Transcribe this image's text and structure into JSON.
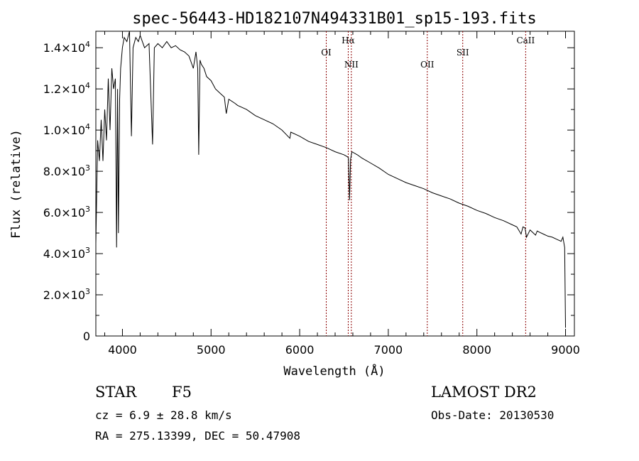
{
  "chart_data": {
    "type": "line",
    "title": "spec-56443-HD182107N494331B01_sp15-193.fits",
    "xlabel": "Wavelength (Å)",
    "ylabel": "Flux (relative)",
    "xlim": [
      3700,
      9100
    ],
    "ylim": [
      0,
      14800
    ],
    "x_ticks": [
      4000,
      5000,
      6000,
      7000,
      8000,
      9000
    ],
    "y_ticks": [
      {
        "value": 0,
        "mantissa": "0",
        "exponent": ""
      },
      {
        "value": 2000,
        "mantissa": "2.0×10",
        "exponent": "3"
      },
      {
        "value": 4000,
        "mantissa": "4.0×10",
        "exponent": "3"
      },
      {
        "value": 6000,
        "mantissa": "6.0×10",
        "exponent": "3"
      },
      {
        "value": 8000,
        "mantissa": "8.0×10",
        "exponent": "3"
      },
      {
        "value": 10000,
        "mantissa": "1.0×10",
        "exponent": "4"
      },
      {
        "value": 12000,
        "mantissa": "1.2×10",
        "exponent": "4"
      },
      {
        "value": 14000,
        "mantissa": "1.4×10",
        "exponent": "4"
      }
    ],
    "grid": false,
    "line_color": "#000000",
    "marker_color": "#8b0000",
    "series": [
      {
        "x": [
          3700,
          3720,
          3740,
          3760,
          3780,
          3800,
          3820,
          3840,
          3860,
          3880,
          3900,
          3920,
          3934,
          3945,
          3955,
          3968,
          3980,
          4000,
          4020,
          4050,
          4080,
          4101,
          4120,
          4150,
          4180,
          4200,
          4250,
          4300,
          4340,
          4360,
          4400,
          4450,
          4500,
          4550,
          4600,
          4650,
          4700,
          4750,
          4800,
          4830,
          4850,
          4861,
          4875,
          4890,
          4920,
          4950,
          5000,
          5050,
          5100,
          5150,
          5172,
          5200,
          5270,
          5300,
          5400,
          5500,
          5600,
          5700,
          5800,
          5890,
          5900,
          6000,
          6100,
          6200,
          6300,
          6400,
          6500,
          6540,
          6550,
          6563,
          6575,
          6590,
          6650,
          6700,
          6800,
          6900,
          7000,
          7100,
          7200,
          7300,
          7400,
          7500,
          7600,
          7700,
          7800,
          7900,
          8000,
          8100,
          8200,
          8300,
          8400,
          8450,
          8498,
          8520,
          8542,
          8560,
          8600,
          8662,
          8680,
          8700,
          8750,
          8800,
          8850,
          8900,
          8950,
          8970,
          8990,
          9000
        ],
        "y": [
          4500,
          9500,
          8500,
          10500,
          8500,
          11000,
          9500,
          12500,
          10000,
          13000,
          12000,
          12500,
          4300,
          12000,
          5000,
          11500,
          13000,
          14000,
          14500,
          14300,
          14800,
          9700,
          14000,
          14500,
          14300,
          14600,
          14000,
          14200,
          9300,
          14000,
          14200,
          14000,
          14300,
          14000,
          14100,
          13900,
          13800,
          13600,
          13000,
          13800,
          13000,
          8800,
          13400,
          13200,
          13000,
          12600,
          12400,
          12000,
          11800,
          11600,
          10800,
          11500,
          11300,
          11200,
          11000,
          10700,
          10500,
          10300,
          10000,
          9600,
          9900,
          9700,
          9450,
          9300,
          9150,
          8950,
          8800,
          8700,
          8650,
          6600,
          8600,
          8950,
          8800,
          8650,
          8400,
          8150,
          7850,
          7650,
          7450,
          7300,
          7150,
          6950,
          6800,
          6650,
          6450,
          6300,
          6100,
          5950,
          5750,
          5600,
          5400,
          5300,
          4950,
          5300,
          5250,
          4800,
          5150,
          4900,
          5100,
          5050,
          4950,
          4850,
          4800,
          4700,
          4600,
          4800,
          4300,
          400
        ]
      }
    ],
    "line_markers": [
      {
        "label": "OI",
        "x": 6300,
        "label_row": "low"
      },
      {
        "label": "Hα",
        "x": 6548,
        "label_row": "high"
      },
      {
        "label": "NII",
        "x": 6583,
        "label_row": "mid"
      },
      {
        "label": "OII",
        "x": 7440,
        "label_row": "mid"
      },
      {
        "label": "SII",
        "x": 7840,
        "label_row": "low"
      },
      {
        "label": "CaII",
        "x": 8550,
        "label_row": "high"
      }
    ]
  },
  "info": {
    "object_class": "STAR",
    "subclass": "F5",
    "survey": "LAMOST DR2",
    "redshift": "cz = 6.9 ± 28.8 km/s",
    "obs_date": "Obs-Date: 20130530",
    "coords": "RA = 275.13399, DEC =  50.47908"
  }
}
